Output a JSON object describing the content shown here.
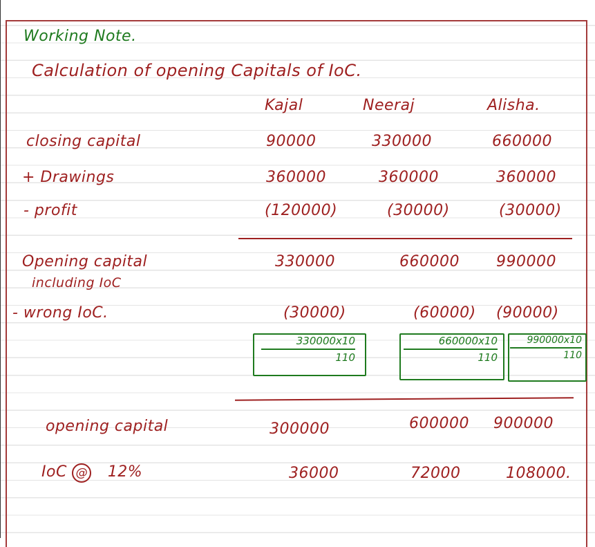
{
  "heading": "Working Note.",
  "title": "Calculation of opening Capitals of IoC.",
  "columns": [
    "Kajal",
    "Neeraj",
    "Alisha."
  ],
  "rows": {
    "closing_capital": {
      "label": "closing capital",
      "values": [
        "90000",
        "330000",
        "660000"
      ]
    },
    "drawings": {
      "label": "+ Drawings",
      "values": [
        "360000",
        "360000",
        "360000"
      ]
    },
    "profit": {
      "label": "- profit",
      "values": [
        "(120000)",
        "(30000)",
        "(30000)"
      ]
    },
    "opening_incl": {
      "label_line1": "Opening capital",
      "label_line2": "including IoC",
      "values": [
        "330000",
        "660000",
        "990000"
      ]
    },
    "wrong_ioc": {
      "label": "- wrong IoC.",
      "values": [
        "(30000)",
        "(60000)",
        "(90000)"
      ]
    },
    "formulas": [
      {
        "numerator": "330000x10",
        "denominator": "110"
      },
      {
        "numerator": "660000x10",
        "denominator": "110"
      },
      {
        "numerator": "990000x10",
        "denominator": "110"
      }
    ],
    "opening_capital": {
      "label": "opening capital",
      "values": [
        "300000",
        "600000",
        "900000"
      ]
    },
    "ioc": {
      "label_prefix": "IoC",
      "label_at": "@",
      "label_rate": "12%",
      "values": [
        "36000",
        "72000",
        "108000."
      ]
    }
  },
  "colors": {
    "ink_red": "#9e2020",
    "ink_green": "#1e7a1e",
    "rule": "#e4e4e4"
  }
}
